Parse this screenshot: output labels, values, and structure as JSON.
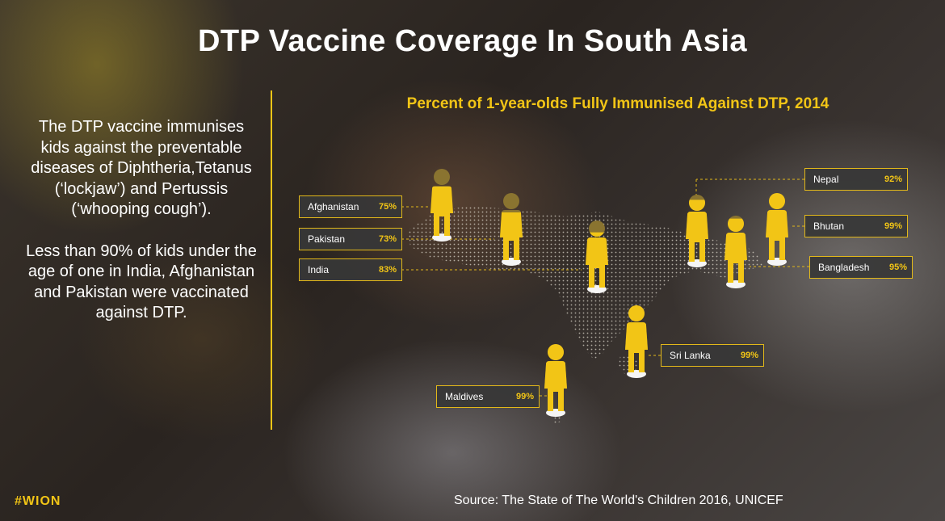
{
  "title": "DTP Vaccine Coverage In South Asia",
  "description": {
    "p1": "The DTP vaccine immunises kids against the preventable diseases of Diphtheria,Tetanus (‘lockjaw’) and Pertussis (‘whooping cough’).",
    "p2": "Less than 90% of kids under the age of one in India, Afghanistan and Pakistan were vaccinated against DTP."
  },
  "chart_data": {
    "type": "pictogram",
    "title": "Percent of 1-year-olds Fully Immunised Against DTP, 2014",
    "unit": "%",
    "countries": [
      {
        "name": "Afghanistan",
        "label": "75%",
        "value": 75
      },
      {
        "name": "Pakistan",
        "label": "73%",
        "value": 73
      },
      {
        "name": "India",
        "label": "83%",
        "value": 83
      },
      {
        "name": "Nepal",
        "label": "92%",
        "value": 92
      },
      {
        "name": "Bhutan",
        "label": "99%",
        "value": 99
      },
      {
        "name": "Bangladesh",
        "label": "95%",
        "value": 95
      },
      {
        "name": "Sri Lanka",
        "label": "99%",
        "value": 99
      },
      {
        "name": "Maldives",
        "label": "99%",
        "value": 99
      }
    ]
  },
  "colors": {
    "accent": "#f2c516",
    "figure_fill": "#f2c516",
    "figure_empty": "#8a7430"
  },
  "footer": {
    "brand": "#WION",
    "source": "Source: The State of The World's Children 2016, UNICEF"
  }
}
